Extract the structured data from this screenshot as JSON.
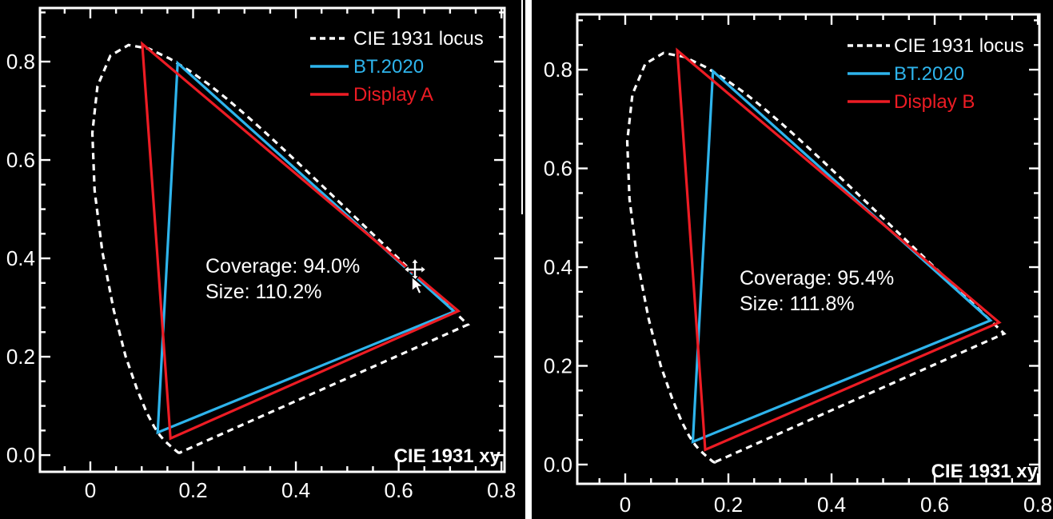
{
  "app": {
    "background": "#000000",
    "divider_color": "#ffffff"
  },
  "colors": {
    "axis": "#ffffff",
    "text": "#ffffff",
    "locus": "#ffffff",
    "bt2020": "#2eb4ec",
    "display": "#ed1c24"
  },
  "cie_locus_xy": [
    [
      0.1741,
      0.005
    ],
    [
      0.174,
      0.0048
    ],
    [
      0.1733,
      0.0048
    ],
    [
      0.1726,
      0.0048
    ],
    [
      0.1714,
      0.0051
    ],
    [
      0.1689,
      0.0069
    ],
    [
      0.1644,
      0.0109
    ],
    [
      0.1566,
      0.0177
    ],
    [
      0.144,
      0.0297
    ],
    [
      0.1355,
      0.0399
    ],
    [
      0.1241,
      0.0578
    ],
    [
      0.1096,
      0.0868
    ],
    [
      0.0913,
      0.1327
    ],
    [
      0.0687,
      0.2007
    ],
    [
      0.0454,
      0.295
    ],
    [
      0.0235,
      0.4127
    ],
    [
      0.0082,
      0.5384
    ],
    [
      0.0039,
      0.6548
    ],
    [
      0.0139,
      0.7502
    ],
    [
      0.0389,
      0.812
    ],
    [
      0.0743,
      0.8338
    ],
    [
      0.1142,
      0.8262
    ],
    [
      0.1547,
      0.8059
    ],
    [
      0.1929,
      0.7816
    ],
    [
      0.2296,
      0.7543
    ],
    [
      0.2658,
      0.7243
    ],
    [
      0.3016,
      0.6923
    ],
    [
      0.3373,
      0.6589
    ],
    [
      0.3731,
      0.6245
    ],
    [
      0.4087,
      0.5896
    ],
    [
      0.4441,
      0.5547
    ],
    [
      0.4788,
      0.5202
    ],
    [
      0.5125,
      0.4866
    ],
    [
      0.5448,
      0.4544
    ],
    [
      0.5752,
      0.4242
    ],
    [
      0.6029,
      0.3965
    ],
    [
      0.627,
      0.3725
    ],
    [
      0.6482,
      0.3514
    ],
    [
      0.6658,
      0.334
    ],
    [
      0.6801,
      0.3197
    ],
    [
      0.6915,
      0.3083
    ],
    [
      0.7006,
      0.2993
    ],
    [
      0.7079,
      0.292
    ],
    [
      0.714,
      0.2859
    ],
    [
      0.719,
      0.2809
    ],
    [
      0.726,
      0.274
    ],
    [
      0.73,
      0.27
    ],
    [
      0.7347,
      0.2653
    ]
  ],
  "chart_data": [
    {
      "type": "line",
      "title": "",
      "xlabel": "",
      "ylabel": "",
      "corner_label": "CIE 1931 xy",
      "xlim": [
        -0.098,
        0.806
      ],
      "ylim": [
        -0.034,
        0.909
      ],
      "grid": false,
      "legend_position": "top-right",
      "x_ticks": [
        {
          "v": 0.0,
          "label": "0"
        },
        {
          "v": 0.2,
          "label": "0.2"
        },
        {
          "v": 0.4,
          "label": "0.4"
        },
        {
          "v": 0.6,
          "label": "0.6"
        },
        {
          "v": 0.8,
          "label": "0.8"
        }
      ],
      "y_ticks": [
        {
          "v": 0.0,
          "label": "0.0"
        },
        {
          "v": 0.2,
          "label": "0.2"
        },
        {
          "v": 0.4,
          "label": "0.4"
        },
        {
          "v": 0.6,
          "label": "0.6"
        },
        {
          "v": 0.8,
          "label": "0.8"
        }
      ],
      "series": [
        {
          "name": "CIE 1931 locus",
          "color": "#ffffff",
          "dashed": true,
          "closed": true,
          "points": "cie_locus_xy"
        },
        {
          "name": "BT.2020",
          "color": "#2eb4ec",
          "dashed": false,
          "closed": true,
          "points": [
            [
              0.708,
              0.292
            ],
            [
              0.17,
              0.797
            ],
            [
              0.131,
              0.046
            ]
          ]
        },
        {
          "name": "Display A",
          "color": "#ed1c24",
          "dashed": false,
          "closed": true,
          "points": [
            [
              0.716,
              0.293
            ],
            [
              0.101,
              0.836
            ],
            [
              0.156,
              0.034
            ]
          ]
        }
      ],
      "annotations": [
        {
          "name": "coverage",
          "text": "Coverage: 94.0%"
        },
        {
          "name": "size",
          "text": "Size: 110.2%"
        }
      ],
      "cursor_visible": true
    },
    {
      "type": "line",
      "title": "",
      "xlabel": "",
      "ylabel": "",
      "corner_label": "CIE 1931 xy",
      "xlim": [
        -0.093,
        0.803
      ],
      "ylim": [
        -0.039,
        0.912
      ],
      "grid": false,
      "legend_position": "top-right",
      "x_ticks": [
        {
          "v": 0.0,
          "label": "0"
        },
        {
          "v": 0.2,
          "label": "0.2"
        },
        {
          "v": 0.4,
          "label": "0.4"
        },
        {
          "v": 0.6,
          "label": "0.6"
        },
        {
          "v": 0.8,
          "label": "0.8"
        }
      ],
      "y_ticks": [
        {
          "v": 0.0,
          "label": "0.0"
        },
        {
          "v": 0.2,
          "label": "0.2"
        },
        {
          "v": 0.4,
          "label": "0.4"
        },
        {
          "v": 0.6,
          "label": "0.6"
        },
        {
          "v": 0.8,
          "label": "0.8"
        }
      ],
      "series": [
        {
          "name": "CIE 1931 locus",
          "color": "#ffffff",
          "dashed": true,
          "closed": true,
          "points": "cie_locus_xy"
        },
        {
          "name": "BT.2020",
          "color": "#2eb4ec",
          "dashed": false,
          "closed": true,
          "points": [
            [
              0.708,
              0.292
            ],
            [
              0.17,
              0.797
            ],
            [
              0.131,
              0.046
            ]
          ]
        },
        {
          "name": "Display B",
          "color": "#ed1c24",
          "dashed": false,
          "closed": true,
          "points": [
            [
              0.725,
              0.288
            ],
            [
              0.101,
              0.839
            ],
            [
              0.155,
              0.03
            ]
          ]
        }
      ],
      "annotations": [
        {
          "name": "coverage",
          "text": "Coverage: 95.4%"
        },
        {
          "name": "size",
          "text": "Size: 111.8%"
        }
      ],
      "cursor_visible": false
    }
  ]
}
